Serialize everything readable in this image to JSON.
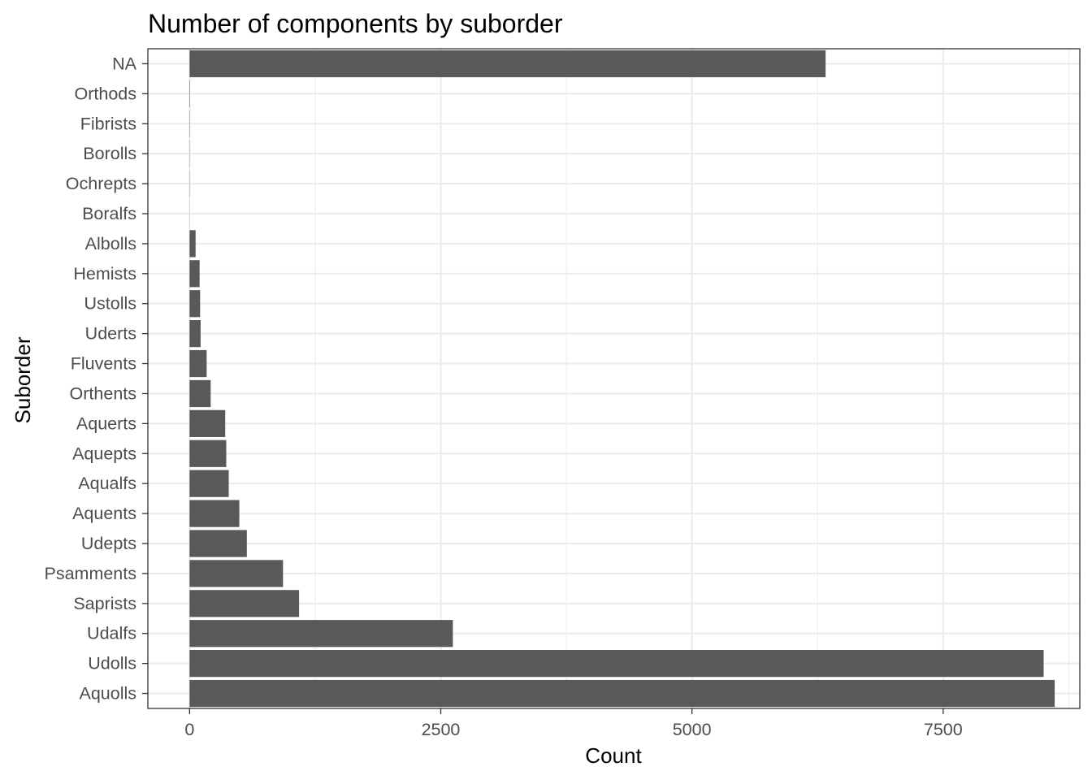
{
  "chart_data": {
    "type": "bar",
    "orientation": "horizontal",
    "title": "Number of components by suborder",
    "xlabel": "Count",
    "ylabel": "Suborder",
    "categories": [
      "NA",
      "Orthods",
      "Fibrists",
      "Borolls",
      "Ochrepts",
      "Boralfs",
      "Albolls",
      "Hemists",
      "Ustolls",
      "Uderts",
      "Fluvents",
      "Orthents",
      "Aquerts",
      "Aquepts",
      "Aqualfs",
      "Aquents",
      "Udepts",
      "Psamments",
      "Saprists",
      "Udalfs",
      "Udolls",
      "Aquolls"
    ],
    "values": [
      6330,
      4,
      3,
      2,
      2,
      1,
      60,
      100,
      105,
      110,
      170,
      210,
      355,
      365,
      390,
      495,
      570,
      930,
      1090,
      2620,
      8500,
      8610
    ],
    "xlim": [
      -415,
      8860
    ],
    "xticks": [
      0,
      2500,
      5000,
      7500
    ],
    "xtick_labels": [
      "0",
      "2500",
      "5000",
      "7500"
    ],
    "grid": true,
    "legend": "none",
    "colors": {
      "bar": "#595959",
      "grid": "#ebebeb",
      "panel_border": "#333333",
      "tick_text": "#4d4d4d",
      "tick_mark": "#333333"
    }
  }
}
